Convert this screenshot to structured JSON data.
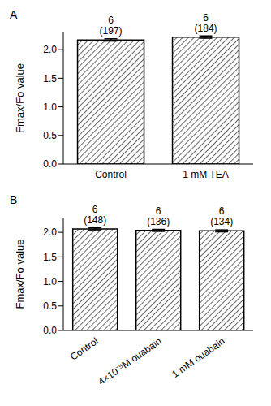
{
  "chart_data": [
    {
      "type": "bar",
      "panel": "A",
      "y_label": "Fmax/Fo value",
      "categories": [
        "Control",
        "1 mM TEA"
      ],
      "values": [
        2.17,
        2.22
      ],
      "errors": [
        0.02,
        0.02
      ],
      "annotations": [
        [
          "6",
          "(197)"
        ],
        [
          "6",
          "(184)"
        ]
      ],
      "color": "#000000",
      "ylim": [
        0,
        2.3
      ],
      "yticks": [
        {
          "value": 0,
          "label": "0.0"
        },
        {
          "value": 0.5,
          "label": "0.5"
        },
        {
          "value": 1,
          "label": "1.0"
        },
        {
          "value": 1.5,
          "label": "1.5"
        },
        {
          "value": 2,
          "label": "2.0"
        }
      ],
      "grid": false
    },
    {
      "type": "bar",
      "panel": "B",
      "y_label": "Fmax/Fo value",
      "categories": [
        "Control",
        "4×10⁻⁵M ouabain",
        "1 mM ouabain"
      ],
      "values": [
        2.07,
        2.04,
        2.03
      ],
      "errors": [
        0.02,
        0.02,
        0.02
      ],
      "annotations": [
        [
          "6",
          "(148)"
        ],
        [
          "6",
          "(136)"
        ],
        [
          "6",
          "(134)"
        ]
      ],
      "color": "#000000",
      "ylim": [
        0,
        2.3
      ],
      "yticks": [
        {
          "value": 0,
          "label": "0.0"
        },
        {
          "value": 0.5,
          "label": "0.5"
        },
        {
          "value": 1,
          "label": "1.0"
        },
        {
          "value": 1.5,
          "label": "1.5"
        },
        {
          "value": 2,
          "label": "2.0"
        }
      ],
      "grid": false
    }
  ]
}
